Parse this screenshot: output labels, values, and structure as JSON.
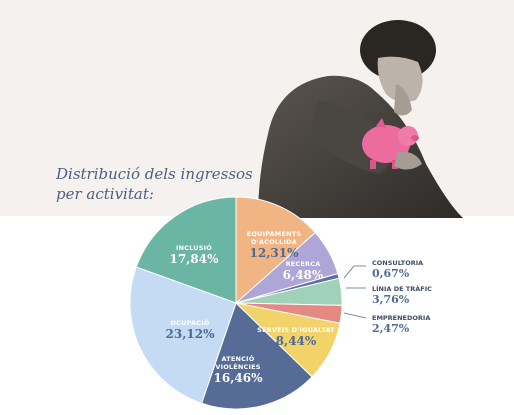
{
  "title_line1": "Distribució dels ingressos",
  "title_line2": "per activitat:",
  "chart_data": {
    "type": "pie",
    "title": "Distribució dels ingressos per activitat:",
    "unit": "%",
    "slices": [
      {
        "label": "EQUIPAMENTS D'ACOLLIDA",
        "line1": "EQUIPAMENTS",
        "line2": "D'ACOLLIDA",
        "value": 12.31,
        "display": "12,31%",
        "color": "#f1b483",
        "valColor": "#4d6a95"
      },
      {
        "label": "RECERCA",
        "line1": "RECERCA",
        "line2": "",
        "value": 6.48,
        "display": "6,48%",
        "color": "#aea6d6",
        "valColor": "#ffffff"
      },
      {
        "label": "CONSULTORIA",
        "line1": "CONSULTORIA",
        "line2": "",
        "value": 0.67,
        "display": "0,67%",
        "color": "#5c6fa0",
        "valColor": "#4d6a95"
      },
      {
        "label": "LÍNIA DE TRÀFIC",
        "line1": "LÍNIA DE TRÀFIC",
        "line2": "",
        "value": 3.76,
        "display": "3,76%",
        "color": "#9fd2b9",
        "valColor": "#4d6a95"
      },
      {
        "label": "EMPRENEDORIA",
        "line1": "EMPRENEDORIA",
        "line2": "",
        "value": 2.47,
        "display": "2,47%",
        "color": "#e58a82",
        "valColor": "#4d6a95"
      },
      {
        "label": "SERVEIS D'IGUALTAT",
        "line1": "SERVEIS D'IGUALTAT",
        "line2": "",
        "value": 8.44,
        "display": "8,44%",
        "color": "#f2d36a",
        "valColor": "#4d6a95"
      },
      {
        "label": "ATENCIÓ VIOLÈNCIES",
        "line1": "ATENCIÓ",
        "line2": "VIOLÈNCIES",
        "value": 16.46,
        "display": "16,46%",
        "color": "#566c96",
        "valColor": "#ffffff"
      },
      {
        "label": "OCUPACIÓ",
        "line1": "OCUPACIÓ",
        "line2": "",
        "value": 23.12,
        "display": "23,12%",
        "color": "#c5daf3",
        "valColor": "#4d6a95"
      },
      {
        "label": "INCLUSIÓ",
        "line1": "INCLUSIÓ",
        "line2": "",
        "value": 17.84,
        "display": "17,84%",
        "color": "#6bb5a5",
        "valColor": "#ffffff"
      }
    ],
    "legend": "none"
  },
  "colors": {
    "title": "#4d5f80",
    "background_top": "#f4f1ef",
    "leader_line": "#4d6a95"
  },
  "illustration": {
    "description_icon": "woman-with-piggy-bank-photo"
  }
}
